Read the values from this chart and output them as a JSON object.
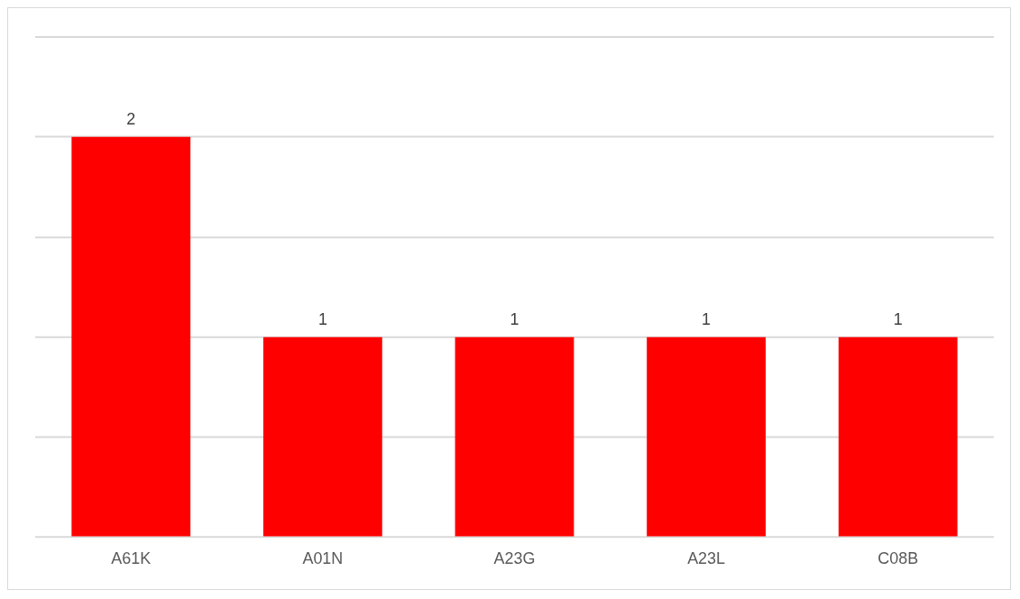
{
  "chart_data": {
    "type": "bar",
    "categories": [
      "A61K",
      "A01N",
      "A23G",
      "A23L",
      "C08B"
    ],
    "values": [
      2,
      1,
      1,
      1,
      1
    ],
    "color": "#ff0000",
    "ylim": [
      0,
      2.5
    ],
    "yticks": [
      0,
      0.5,
      1,
      1.5,
      2,
      2.5
    ],
    "grid": "y",
    "tick_labels": "x",
    "data_labels": true,
    "legend": false
  }
}
